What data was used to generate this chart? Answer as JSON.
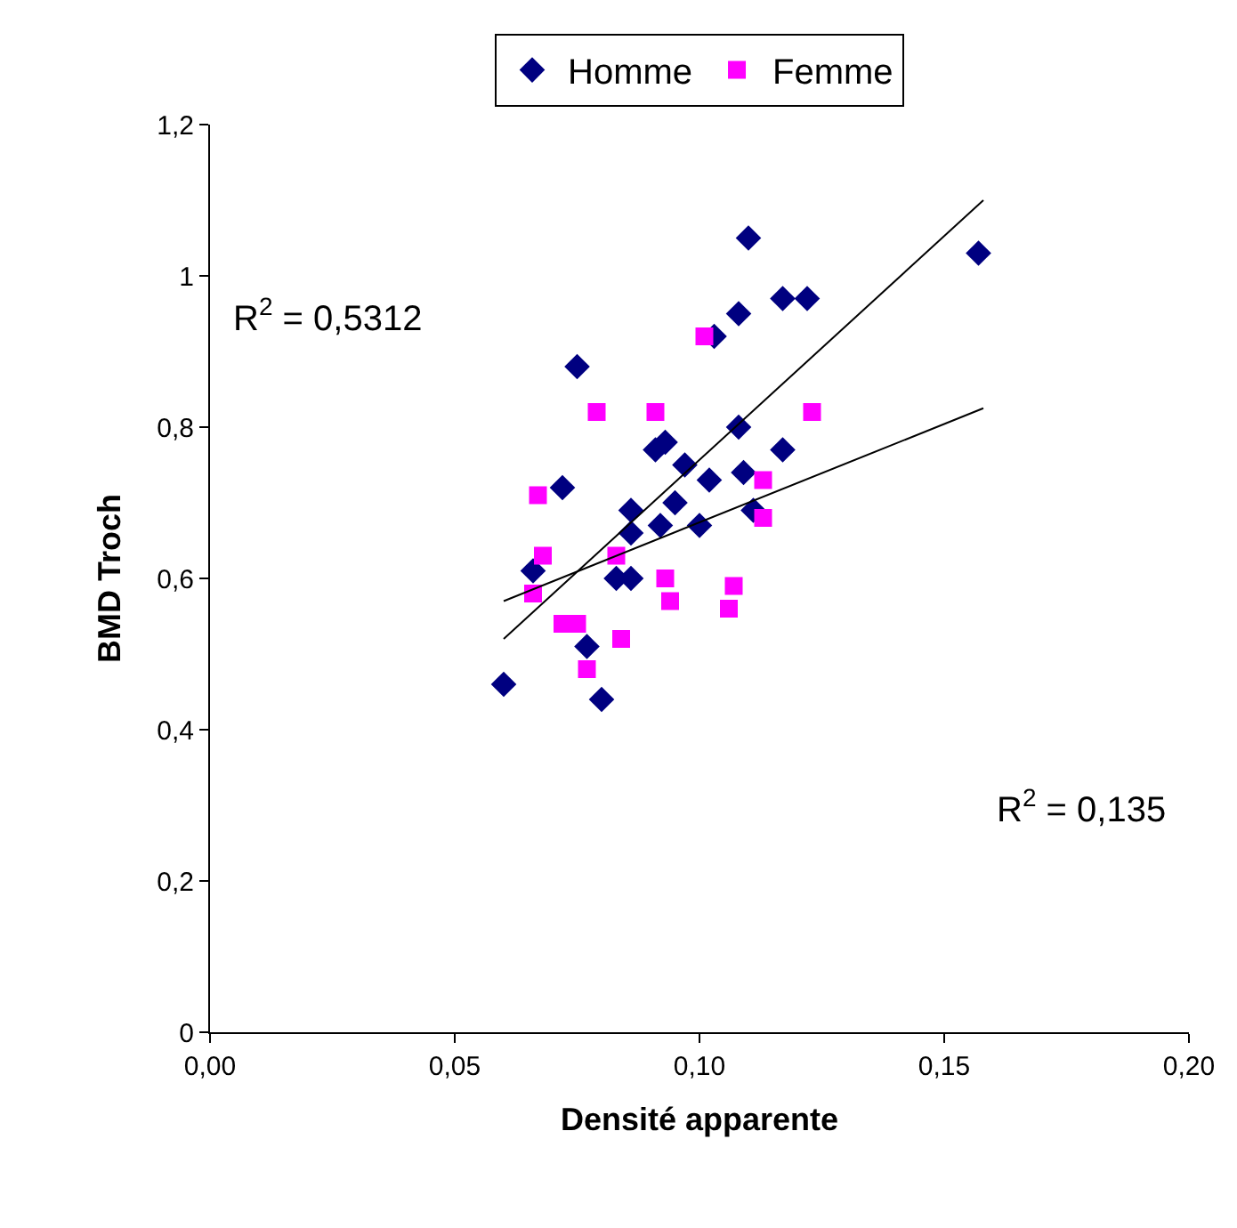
{
  "chart_data": {
    "type": "scatter",
    "xlabel": "Densité apparente",
    "ylabel": "BMD Troch",
    "xlim": [
      0,
      0.2
    ],
    "xticks": [
      {
        "value": 0,
        "label": "0,00"
      },
      {
        "value": 0.05,
        "label": "0,05"
      },
      {
        "value": 0.1,
        "label": "0,10"
      },
      {
        "value": 0.15,
        "label": "0,15"
      },
      {
        "value": 0.2,
        "label": "0,20"
      }
    ],
    "ylim": [
      0,
      1.2
    ],
    "yticks": [
      0,
      {
        "value": 0.2,
        "label": "0,2"
      },
      {
        "value": 0.4,
        "label": "0,4"
      },
      {
        "value": 0.6,
        "label": "0,6"
      },
      {
        "value": 0.8,
        "label": "0,8"
      },
      1,
      {
        "value": 1.2,
        "label": "1,2"
      }
    ],
    "legend": "top",
    "annotations": [
      "R$^{2}$ = 0,5312",
      "R$^{2}$ = 0,135"
    ],
    "series": [
      {
        "name": "Homme",
        "color": "#000080",
        "marker": "diamond",
        "x": [
          0.06,
          0.066,
          0.072,
          0.075,
          0.077,
          0.08,
          0.083,
          0.086,
          0.086,
          0.086,
          0.092,
          0.091,
          0.093,
          0.095,
          0.097,
          0.1,
          0.102,
          0.103,
          0.108,
          0.108,
          0.109,
          0.11,
          0.111,
          0.117,
          0.117,
          0.122,
          0.157
        ],
        "values": [
          0.46,
          0.61,
          0.72,
          0.88,
          0.51,
          0.44,
          0.6,
          0.6,
          0.69,
          0.66,
          0.67,
          0.77,
          0.78,
          0.7,
          0.75,
          0.67,
          0.73,
          0.92,
          0.95,
          0.8,
          0.74,
          1.05,
          0.69,
          0.97,
          0.77,
          0.97,
          1.03
        ]
      },
      {
        "name": "Femme",
        "color": "#ff00ff",
        "marker": "square",
        "x": [
          0.067,
          0.066,
          0.068,
          0.072,
          0.075,
          0.077,
          0.079,
          0.083,
          0.084,
          0.091,
          0.093,
          0.094,
          0.101,
          0.106,
          0.107,
          0.113,
          0.113,
          0.123
        ],
        "values": [
          0.71,
          0.58,
          0.63,
          0.54,
          0.54,
          0.48,
          0.82,
          0.63,
          0.52,
          0.82,
          0.6,
          0.57,
          0.92,
          0.56,
          0.59,
          0.73,
          0.68,
          0.82
        ]
      },
      {
        "type": "line",
        "color": "#000000",
        "x": [
          0.06,
          0.158
        ],
        "values": [
          0.52,
          1.1
        ]
      },
      {
        "type": "line",
        "color": "#000000",
        "x": [
          0.06,
          0.158
        ],
        "values": [
          0.57,
          0.825
        ]
      }
    ]
  }
}
